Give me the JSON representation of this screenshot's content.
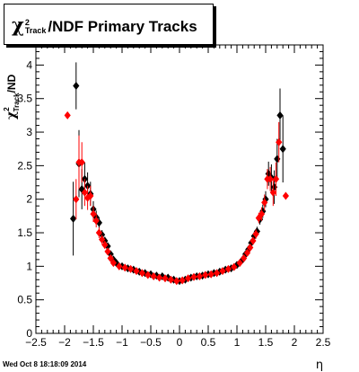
{
  "title": {
    "symbol": "χ",
    "sup": "2",
    "sub": "Track",
    "rest": "/NDF  Primary Tracks"
  },
  "timestamp": "Wed Oct  8 18:18:09 2014",
  "axes": {
    "xlabel": "η",
    "ylabel_symbol": "χ",
    "ylabel_sup": "2",
    "ylabel_sub": "Track",
    "ylabel_rest": "/ND"
  },
  "colors": {
    "series_black": "#000000",
    "series_red": "#ff0000"
  },
  "chart_data": {
    "type": "scatter",
    "title": "χ2Track/NDF  Primary Tracks",
    "xlabel": "η",
    "ylabel": "χ2Track/ND",
    "xlim": [
      -2.5,
      2.5
    ],
    "ylim": [
      0,
      4.3
    ],
    "x_ticks": [
      "−2.5",
      "−2",
      "−1.5",
      "−1",
      "−0.5",
      "0",
      "0.5",
      "1",
      "1.5",
      "2",
      "2.5"
    ],
    "y_ticks": [
      "0",
      "0.5",
      "1",
      "1.5",
      "2",
      "2.5",
      "3",
      "3.5",
      "4"
    ],
    "grid": false,
    "series": [
      {
        "color": "black",
        "marker": "diamond",
        "points": [
          {
            "x": -1.85,
            "y": 1.71,
            "err": 0.55
          },
          {
            "x": -1.8,
            "y": 3.69,
            "err": 0.35
          },
          {
            "x": -1.75,
            "y": 2.53,
            "err": 0.5
          },
          {
            "x": -1.7,
            "y": 2.15,
            "err": 0.3
          },
          {
            "x": -1.65,
            "y": 2.3,
            "err": 0.25
          },
          {
            "x": -1.6,
            "y": 2.2,
            "err": 0.2
          },
          {
            "x": -1.55,
            "y": 2.08,
            "err": 0.18
          },
          {
            "x": -1.5,
            "y": 1.85,
            "err": 0.12
          },
          {
            "x": -1.45,
            "y": 1.73,
            "err": 0.1
          },
          {
            "x": -1.4,
            "y": 1.65,
            "err": 0.08
          },
          {
            "x": -1.35,
            "y": 1.47,
            "err": 0.07
          },
          {
            "x": -1.3,
            "y": 1.38,
            "err": 0.06
          },
          {
            "x": -1.25,
            "y": 1.3,
            "err": 0.05
          },
          {
            "x": -1.2,
            "y": 1.18,
            "err": 0.04
          },
          {
            "x": -1.15,
            "y": 1.1,
            "err": 0.04
          },
          {
            "x": -1.1,
            "y": 1.05,
            "err": 0.03
          },
          {
            "x": -1.0,
            "y": 1.0,
            "err": 0.03
          },
          {
            "x": -0.9,
            "y": 0.97,
            "err": 0.03
          },
          {
            "x": -0.8,
            "y": 0.95,
            "err": 0.02
          },
          {
            "x": -0.7,
            "y": 0.92,
            "err": 0.02
          },
          {
            "x": -0.6,
            "y": 0.9,
            "err": 0.02
          },
          {
            "x": -0.5,
            "y": 0.88,
            "err": 0.02
          },
          {
            "x": -0.4,
            "y": 0.86,
            "err": 0.02
          },
          {
            "x": -0.3,
            "y": 0.85,
            "err": 0.02
          },
          {
            "x": -0.2,
            "y": 0.83,
            "err": 0.02
          },
          {
            "x": -0.1,
            "y": 0.8,
            "err": 0.02
          },
          {
            "x": 0.0,
            "y": 0.78,
            "err": 0.02
          },
          {
            "x": 0.1,
            "y": 0.8,
            "err": 0.02
          },
          {
            "x": 0.2,
            "y": 0.83,
            "err": 0.02
          },
          {
            "x": 0.3,
            "y": 0.85,
            "err": 0.02
          },
          {
            "x": 0.4,
            "y": 0.86,
            "err": 0.02
          },
          {
            "x": 0.5,
            "y": 0.88,
            "err": 0.02
          },
          {
            "x": 0.6,
            "y": 0.9,
            "err": 0.02
          },
          {
            "x": 0.7,
            "y": 0.92,
            "err": 0.02
          },
          {
            "x": 0.8,
            "y": 0.95,
            "err": 0.02
          },
          {
            "x": 0.9,
            "y": 0.97,
            "err": 0.03
          },
          {
            "x": 1.0,
            "y": 1.02,
            "err": 0.03
          },
          {
            "x": 1.1,
            "y": 1.1,
            "err": 0.03
          },
          {
            "x": 1.15,
            "y": 1.18,
            "err": 0.04
          },
          {
            "x": 1.2,
            "y": 1.25,
            "err": 0.04
          },
          {
            "x": 1.25,
            "y": 1.35,
            "err": 0.05
          },
          {
            "x": 1.3,
            "y": 1.45,
            "err": 0.06
          },
          {
            "x": 1.35,
            "y": 1.52,
            "err": 0.07
          },
          {
            "x": 1.4,
            "y": 1.7,
            "err": 0.08
          },
          {
            "x": 1.45,
            "y": 1.82,
            "err": 0.1
          },
          {
            "x": 1.5,
            "y": 2.0,
            "err": 0.12
          },
          {
            "x": 1.55,
            "y": 2.38,
            "err": 0.18
          },
          {
            "x": 1.6,
            "y": 2.32,
            "err": 0.2
          },
          {
            "x": 1.65,
            "y": 2.18,
            "err": 0.25
          },
          {
            "x": 1.7,
            "y": 2.6,
            "err": 0.3
          },
          {
            "x": 1.75,
            "y": 3.25,
            "err": 0.4
          },
          {
            "x": 1.8,
            "y": 2.75,
            "err": 0.5
          }
        ]
      },
      {
        "color": "red",
        "marker": "diamond",
        "points": [
          {
            "x": -1.95,
            "y": 3.25,
            "err": 0
          },
          {
            "x": -1.8,
            "y": 2.0,
            "err": 0.3
          },
          {
            "x": -1.75,
            "y": 2.55,
            "err": 0.4
          },
          {
            "x": -1.7,
            "y": 2.55,
            "err": 0.3
          },
          {
            "x": -1.65,
            "y": 2.1,
            "err": 0.2
          },
          {
            "x": -1.6,
            "y": 2.02,
            "err": 0.18
          },
          {
            "x": -1.55,
            "y": 2.05,
            "err": 0.15
          },
          {
            "x": -1.5,
            "y": 1.78,
            "err": 0.12
          },
          {
            "x": -1.45,
            "y": 1.68,
            "err": 0.1
          },
          {
            "x": -1.4,
            "y": 1.5,
            "err": 0.08
          },
          {
            "x": -1.35,
            "y": 1.4,
            "err": 0.07
          },
          {
            "x": -1.3,
            "y": 1.32,
            "err": 0.06
          },
          {
            "x": -1.25,
            "y": 1.22,
            "err": 0.05
          },
          {
            "x": -1.2,
            "y": 1.12,
            "err": 0.04
          },
          {
            "x": -1.15,
            "y": 1.05,
            "err": 0.04
          },
          {
            "x": -1.05,
            "y": 1.0,
            "err": 0.03
          },
          {
            "x": -0.95,
            "y": 0.98,
            "err": 0.03
          },
          {
            "x": -0.85,
            "y": 0.96,
            "err": 0.02
          },
          {
            "x": -0.75,
            "y": 0.93,
            "err": 0.02
          },
          {
            "x": -0.65,
            "y": 0.9,
            "err": 0.02
          },
          {
            "x": -0.55,
            "y": 0.87,
            "err": 0.02
          },
          {
            "x": -0.45,
            "y": 0.85,
            "err": 0.02
          },
          {
            "x": -0.35,
            "y": 0.83,
            "err": 0.02
          },
          {
            "x": -0.25,
            "y": 0.82,
            "err": 0.02
          },
          {
            "x": -0.15,
            "y": 0.8,
            "err": 0.02
          },
          {
            "x": -0.05,
            "y": 0.78,
            "err": 0.02
          },
          {
            "x": 0.05,
            "y": 0.79,
            "err": 0.02
          },
          {
            "x": 0.15,
            "y": 0.82,
            "err": 0.02
          },
          {
            "x": 0.25,
            "y": 0.84,
            "err": 0.02
          },
          {
            "x": 0.35,
            "y": 0.85,
            "err": 0.02
          },
          {
            "x": 0.45,
            "y": 0.87,
            "err": 0.02
          },
          {
            "x": 0.55,
            "y": 0.88,
            "err": 0.02
          },
          {
            "x": 0.65,
            "y": 0.9,
            "err": 0.02
          },
          {
            "x": 0.75,
            "y": 0.93,
            "err": 0.02
          },
          {
            "x": 0.85,
            "y": 0.96,
            "err": 0.02
          },
          {
            "x": 0.95,
            "y": 0.99,
            "err": 0.03
          },
          {
            "x": 1.05,
            "y": 1.05,
            "err": 0.03
          },
          {
            "x": 1.12,
            "y": 1.12,
            "err": 0.04
          },
          {
            "x": 1.18,
            "y": 1.2,
            "err": 0.04
          },
          {
            "x": 1.23,
            "y": 1.28,
            "err": 0.05
          },
          {
            "x": 1.28,
            "y": 1.38,
            "err": 0.06
          },
          {
            "x": 1.33,
            "y": 1.48,
            "err": 0.07
          },
          {
            "x": 1.38,
            "y": 1.72,
            "err": 0.08
          },
          {
            "x": 1.43,
            "y": 1.78,
            "err": 0.1
          },
          {
            "x": 1.48,
            "y": 1.95,
            "err": 0.12
          },
          {
            "x": 1.53,
            "y": 2.3,
            "err": 0.15
          },
          {
            "x": 1.58,
            "y": 2.3,
            "err": 0.18
          },
          {
            "x": 1.63,
            "y": 2.1,
            "err": 0.2
          },
          {
            "x": 1.68,
            "y": 2.3,
            "err": 0.25
          },
          {
            "x": 1.73,
            "y": 2.85,
            "err": 0.3
          },
          {
            "x": 1.85,
            "y": 2.05,
            "err": 0
          }
        ]
      }
    ]
  }
}
